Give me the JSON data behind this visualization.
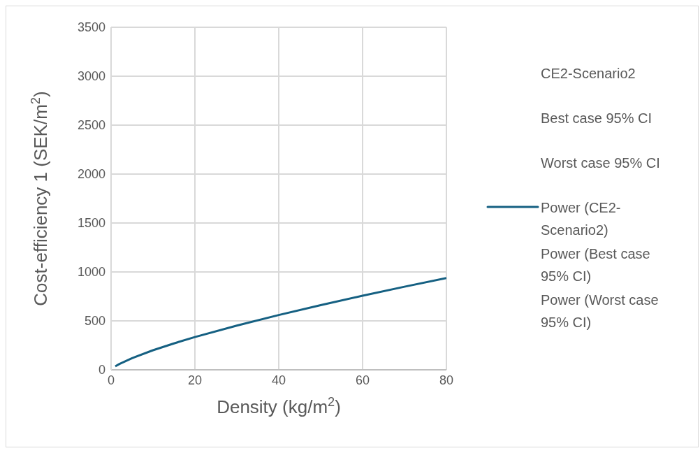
{
  "chart_data": {
    "type": "line",
    "xlabel": "Density (kg/m$^{2}$)",
    "ylabel": "Cost-efficiency 1 (SEK/m$^{2}$)",
    "xlim": [
      0,
      80
    ],
    "xticks": [
      0,
      20,
      40,
      60,
      80
    ],
    "ylim": [
      0,
      3500
    ],
    "yticks": [
      0,
      500,
      1000,
      1500,
      2000,
      2500,
      3000,
      3500
    ],
    "grid": true,
    "legend": "right",
    "series": [
      {
        "name": "CE2-Scenario2"
      },
      {
        "name": "Best case 95% CI"
      },
      {
        "name": "Worst case 95% CI"
      },
      {
        "name": "Power (CE2-Scenario2)",
        "color": "#156082",
        "x": [
          1,
          2,
          5,
          10,
          15,
          20,
          30,
          40,
          50,
          60,
          70,
          80
        ],
        "values": [
          36,
          60,
          119,
          200,
          270,
          335,
          452,
          560,
          661,
          757,
          849,
          938
        ]
      },
      {
        "name": "Power (Best case 95% CI)"
      },
      {
        "name": "Power (Worst case 95% CI)"
      }
    ]
  }
}
